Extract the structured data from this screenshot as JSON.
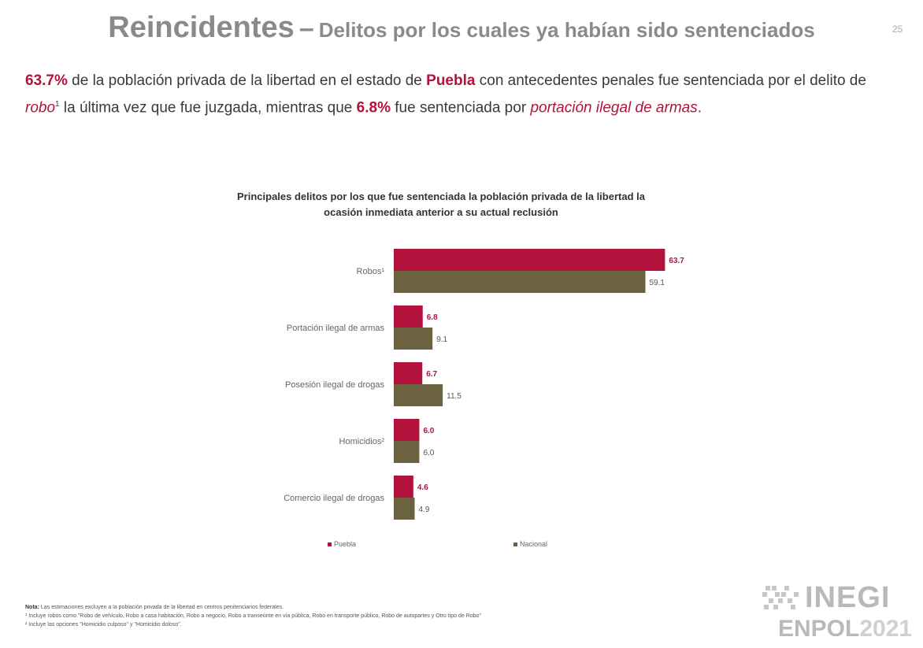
{
  "page": {
    "title_main": "Reincidentes",
    "title_dash": "–",
    "title_sub": "Delitos por los cuales ya habían sido sentenciados",
    "page_number": "25"
  },
  "summary": {
    "pct1": "63.7%",
    "t1": " de la población privada de la libertad en el estado de ",
    "state": "Puebla",
    "t2": " con antecedentes penales fue sentenciada por el delito de ",
    "crime1": "robo",
    "sup1": "1",
    "t3": " la última vez que fue juzgada, mientras que ",
    "pct2": "6.8%",
    "t4": " fue sentenciada por ",
    "crime2": "portación ilegal de armas",
    "t5": "."
  },
  "chart_data": {
    "type": "bar",
    "orientation": "horizontal",
    "title": "Principales delitos por los que fue sentenciada la población privada de la libertad la ocasión inmediata anterior a su actual reclusión",
    "categories": [
      "Robos¹",
      "Portación ilegal de armas",
      "Posesión ilegal de drogas",
      "Homicidios²",
      "Comercio ilegal de drogas"
    ],
    "series": [
      {
        "name": "Puebla",
        "values": [
          63.7,
          6.8,
          6.7,
          6.0,
          4.6
        ],
        "labels": [
          "63.7",
          "6.8",
          "6.7",
          "6.0",
          "4.6"
        ],
        "color": "#b3123c"
      },
      {
        "name": "Nacional",
        "values": [
          59.1,
          9.1,
          11.5,
          6.0,
          4.9
        ],
        "labels": [
          "59.1",
          "9.1",
          "11.5",
          "6.0",
          "4.9"
        ],
        "color": "#6b6240"
      }
    ],
    "xlim": [
      0,
      64
    ],
    "grid": false,
    "legend_position": "bottom"
  },
  "notes": {
    "label": "Nota:",
    "line1": " Las estimaciones excluyen a la población privada de la libertad en centros penitenciarios federales.",
    "line2": "¹ Incluye robos como \"Robo de vehículo, Robo a casa habitación, Robo a negocio, Robo a transeúnte en vía pública, Robo en transporte público, Robo de autopartes y Otro tipo de Robo\"",
    "line3": "² Incluye las opciones \"Homicidio culposo\" y \"Homicidio doloso\"."
  },
  "logo": {
    "inegi": "INEGI",
    "enpol": "ENPOL",
    "year": "2021"
  }
}
